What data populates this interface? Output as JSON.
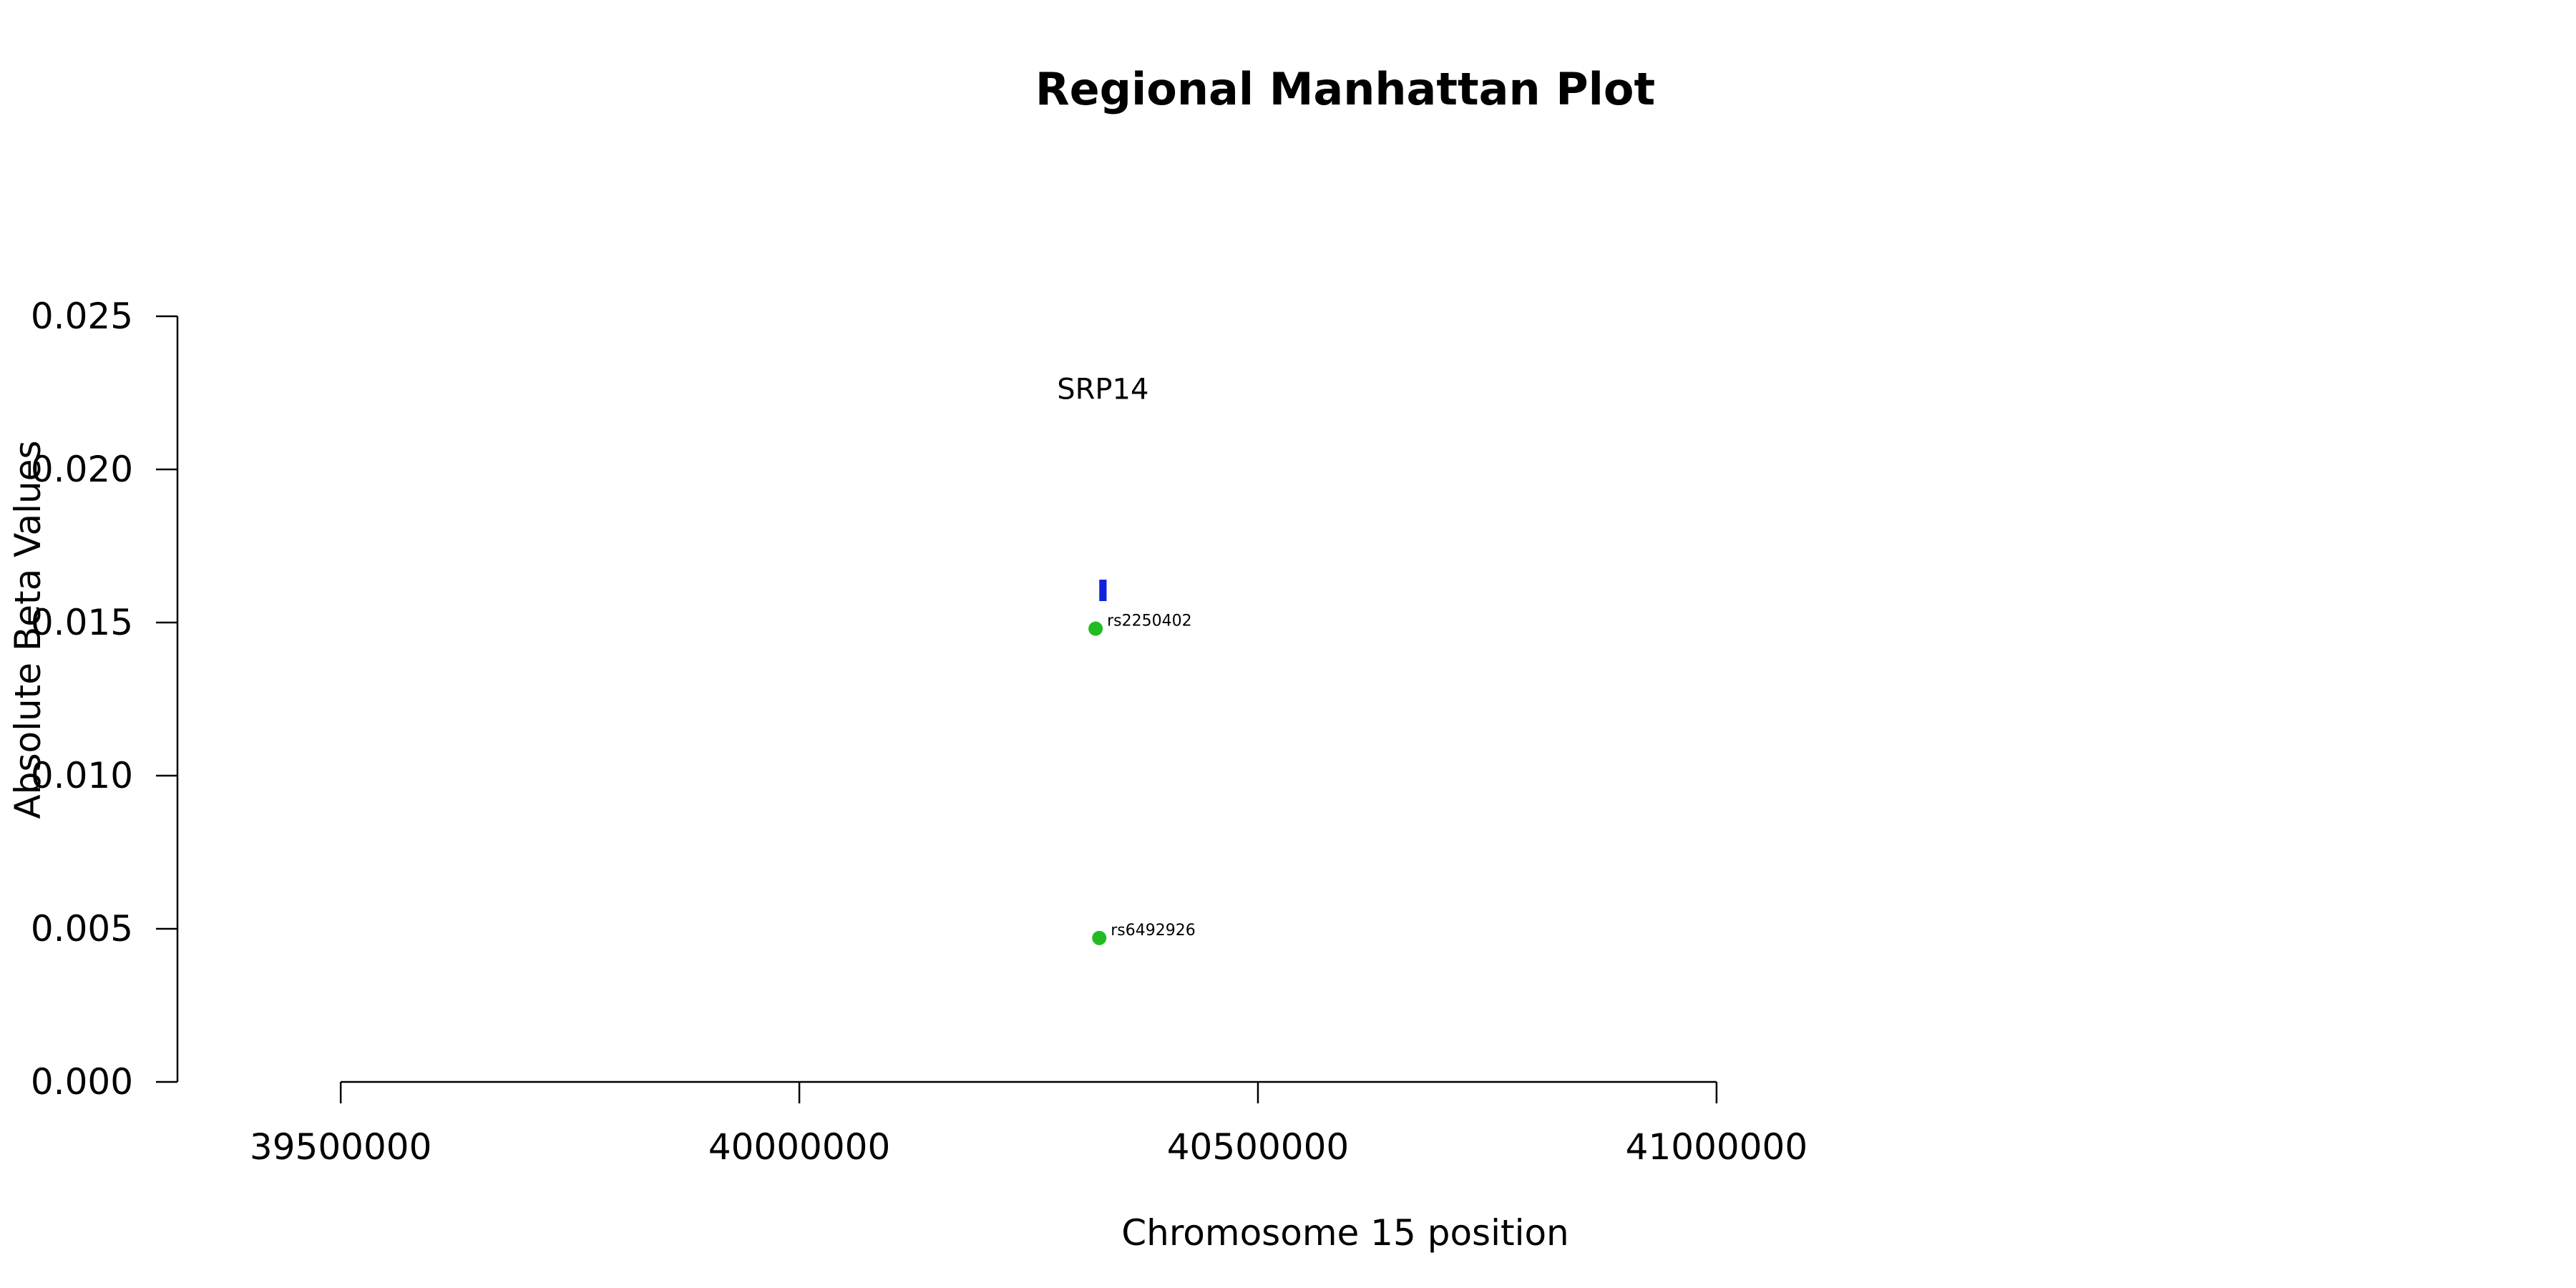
{
  "chart_data": {
    "type": "scatter",
    "title": "Regional Manhattan Plot",
    "xlabel": "Chromosome 15 position",
    "ylabel": "Absolute Beta Values",
    "xlim": [
      39322000,
      41820000
    ],
    "ylim": [
      0.0,
      0.025
    ],
    "x_ticks": [
      39500000,
      40000000,
      40500000,
      41000000
    ],
    "x_tick_labels": [
      "39500000",
      "40000000",
      "40500000",
      "41000000"
    ],
    "y_ticks": [
      0.0,
      0.005,
      0.01,
      0.015,
      0.02,
      0.025
    ],
    "y_tick_labels": [
      "0.000",
      "0.005",
      "0.010",
      "0.015",
      "0.020",
      "0.025"
    ],
    "grid": false,
    "points": [
      {
        "label": "rs2250402",
        "x": 40323000,
        "y": 0.0148,
        "color": "#22bb22"
      },
      {
        "label": "rs6492926",
        "x": 40327000,
        "y": 0.0047,
        "color": "#22bb22"
      }
    ],
    "genes": [
      {
        "name": "SRP14",
        "x_start": 40327000,
        "x_end": 40335000,
        "y_low": 0.0157,
        "y_high": 0.0164,
        "label_y": 0.0223,
        "color": "#1122dd"
      }
    ]
  }
}
